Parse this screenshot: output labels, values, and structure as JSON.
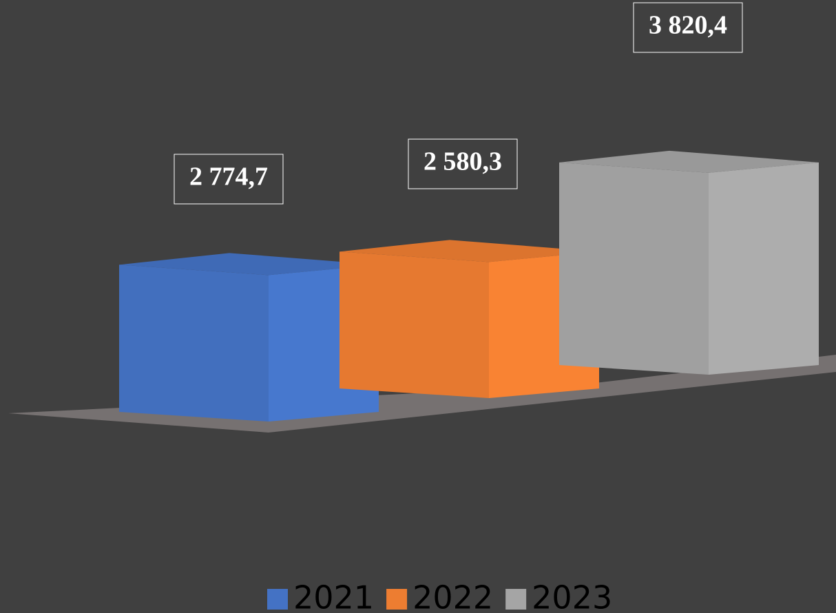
{
  "chart_data": {
    "type": "bar3d",
    "series": [
      {
        "name": "2021",
        "color": "#4472c4",
        "values": [
          2774.7
        ],
        "value_labels": [
          "2 774,7"
        ]
      },
      {
        "name": "2022",
        "color": "#ed7d31",
        "values": [
          2580.3
        ],
        "value_labels": [
          "2 580,3"
        ]
      },
      {
        "name": "2023",
        "color": "#a5a5a5",
        "values": [
          3820.4
        ],
        "value_labels": [
          "3 820,4"
        ]
      }
    ]
  }
}
